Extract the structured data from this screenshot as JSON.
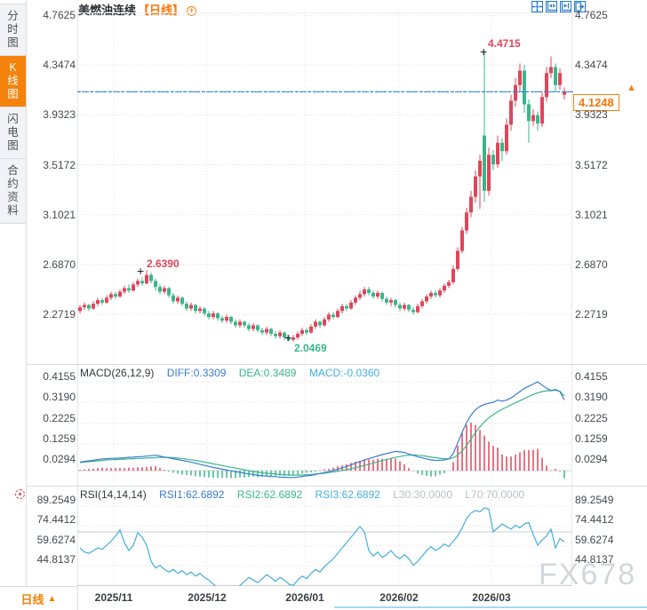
{
  "sidebar": {
    "items": [
      {
        "label": "分时图",
        "active": false
      },
      {
        "label": "K线图",
        "active": true
      },
      {
        "label": "闪电图",
        "active": false
      },
      {
        "label": "合约资料",
        "active": false
      }
    ]
  },
  "header": {
    "title": "美燃油连续",
    "period_tag": "【日线】",
    "add_icon": "+"
  },
  "toolbar": {
    "icons": [
      "crosshair",
      "axis-compress",
      "axis-expand",
      "pan-to-latest"
    ]
  },
  "price_pane": {
    "ticks": [
      "4.7625",
      "4.3474",
      "3.9323",
      "3.5172",
      "3.1021",
      "2.6870",
      "2.2719"
    ],
    "last_price": "4.1248",
    "annotations": {
      "high": "4.4715",
      "swing_high": "2.6390",
      "low": "2.0469"
    }
  },
  "macd_pane": {
    "name": "MACD(26,12,9)",
    "diff_label": "DIFF:0.3309",
    "dea_label": "DEA:0.3489",
    "macd_label": "MACD:-0.0360",
    "ticks": [
      "0.4155",
      "0.3190",
      "0.2225",
      "0.1259",
      "0.0294"
    ]
  },
  "rsi_pane": {
    "name": "RSI(14,14,14)",
    "rsi1_label": "RSI1:62.6892",
    "rsi2_label": "RSI2:62.6892",
    "rsi3_label": "RSI3:62.6892",
    "l30_label": "L30:30.0000",
    "l70_label": "L70:70.0000",
    "ticks": [
      "89.2549",
      "74.4412",
      "59.6274",
      "44.8137"
    ]
  },
  "bottom_bar": {
    "period": "日线",
    "arrow": "▲",
    "x_labels": [
      "2025/11",
      "2025/12",
      "2026/01",
      "2026/02",
      "2026/03"
    ]
  },
  "watermark": "FX678",
  "colors": {
    "up": "#e0455a",
    "down": "#3bb68a",
    "diff": "#3a7bd5",
    "dea": "#3bb68a",
    "rsi": "#45aede",
    "dashed_line": "#2f80d8",
    "accent_orange": "#f5820a",
    "grid": "#d8dadd"
  },
  "chart_data": [
    {
      "type": "candlestick",
      "title": "美燃油连续 日线",
      "x_labels": [
        "2025/11",
        "2025/12",
        "2026/01",
        "2026/02",
        "2026/03"
      ],
      "y_ticks": [
        4.7625,
        4.3474,
        3.9323,
        3.5172,
        3.1021,
        2.687,
        2.2719
      ],
      "high_annotation": 4.4715,
      "low_annotation": 2.0469,
      "swing_high_annotation": 2.639,
      "last_close": 4.1248,
      "ohlc": [
        [
          2.3,
          2.35,
          2.28,
          2.33
        ],
        [
          2.33,
          2.37,
          2.31,
          2.35
        ],
        [
          2.35,
          2.36,
          2.3,
          2.32
        ],
        [
          2.32,
          2.38,
          2.31,
          2.36
        ],
        [
          2.36,
          2.41,
          2.34,
          2.39
        ],
        [
          2.39,
          2.41,
          2.35,
          2.37
        ],
        [
          2.37,
          2.43,
          2.36,
          2.41
        ],
        [
          2.41,
          2.46,
          2.39,
          2.44
        ],
        [
          2.44,
          2.46,
          2.4,
          2.42
        ],
        [
          2.42,
          2.48,
          2.41,
          2.46
        ],
        [
          2.46,
          2.51,
          2.44,
          2.49
        ],
        [
          2.49,
          2.52,
          2.45,
          2.47
        ],
        [
          2.47,
          2.54,
          2.46,
          2.52
        ],
        [
          2.52,
          2.57,
          2.5,
          2.55
        ],
        [
          2.55,
          2.58,
          2.51,
          2.53
        ],
        [
          2.53,
          2.639,
          2.52,
          2.6
        ],
        [
          2.6,
          2.62,
          2.53,
          2.55
        ],
        [
          2.55,
          2.57,
          2.47,
          2.5
        ],
        [
          2.5,
          2.52,
          2.44,
          2.46
        ],
        [
          2.46,
          2.51,
          2.44,
          2.49
        ],
        [
          2.49,
          2.5,
          2.41,
          2.43
        ],
        [
          2.43,
          2.45,
          2.36,
          2.38
        ],
        [
          2.38,
          2.43,
          2.36,
          2.41
        ],
        [
          2.41,
          2.42,
          2.34,
          2.36
        ],
        [
          2.36,
          2.38,
          2.3,
          2.32
        ],
        [
          2.32,
          2.37,
          2.3,
          2.35
        ],
        [
          2.35,
          2.36,
          2.28,
          2.3
        ],
        [
          2.3,
          2.34,
          2.28,
          2.32
        ],
        [
          2.32,
          2.33,
          2.26,
          2.28
        ],
        [
          2.28,
          2.3,
          2.23,
          2.25
        ],
        [
          2.25,
          2.3,
          2.23,
          2.28
        ],
        [
          2.28,
          2.29,
          2.22,
          2.24
        ],
        [
          2.24,
          2.26,
          2.2,
          2.22
        ],
        [
          2.22,
          2.27,
          2.2,
          2.25
        ],
        [
          2.25,
          2.26,
          2.19,
          2.21
        ],
        [
          2.21,
          2.23,
          2.16,
          2.18
        ],
        [
          2.18,
          2.23,
          2.16,
          2.21
        ],
        [
          2.21,
          2.22,
          2.16,
          2.18
        ],
        [
          2.18,
          2.2,
          2.13,
          2.15
        ],
        [
          2.15,
          2.2,
          2.13,
          2.18
        ],
        [
          2.18,
          2.19,
          2.12,
          2.14
        ],
        [
          2.14,
          2.16,
          2.1,
          2.12
        ],
        [
          2.12,
          2.17,
          2.1,
          2.15
        ],
        [
          2.15,
          2.16,
          2.09,
          2.11
        ],
        [
          2.11,
          2.13,
          2.07,
          2.09
        ],
        [
          2.09,
          2.14,
          2.07,
          2.12
        ],
        [
          2.12,
          2.13,
          2.06,
          2.08
        ],
        [
          2.08,
          2.1,
          2.05,
          2.06
        ],
        [
          2.06,
          2.1,
          2.0469,
          2.08
        ],
        [
          2.08,
          2.13,
          2.06,
          2.11
        ],
        [
          2.11,
          2.16,
          2.09,
          2.14
        ],
        [
          2.14,
          2.16,
          2.1,
          2.12
        ],
        [
          2.12,
          2.19,
          2.11,
          2.17
        ],
        [
          2.17,
          2.23,
          2.15,
          2.21
        ],
        [
          2.21,
          2.22,
          2.16,
          2.18
        ],
        [
          2.18,
          2.25,
          2.17,
          2.23
        ],
        [
          2.23,
          2.29,
          2.21,
          2.27
        ],
        [
          2.27,
          2.29,
          2.23,
          2.25
        ],
        [
          2.25,
          2.32,
          2.24,
          2.3
        ],
        [
          2.3,
          2.36,
          2.28,
          2.34
        ],
        [
          2.34,
          2.36,
          2.3,
          2.32
        ],
        [
          2.32,
          2.39,
          2.31,
          2.37
        ],
        [
          2.37,
          2.43,
          2.35,
          2.41
        ],
        [
          2.41,
          2.47,
          2.39,
          2.44
        ],
        [
          2.44,
          2.5,
          2.42,
          2.48
        ],
        [
          2.48,
          2.5,
          2.43,
          2.45
        ],
        [
          2.45,
          2.47,
          2.4,
          2.42
        ],
        [
          2.42,
          2.47,
          2.4,
          2.45
        ],
        [
          2.45,
          2.46,
          2.38,
          2.4
        ],
        [
          2.4,
          2.42,
          2.35,
          2.37
        ],
        [
          2.37,
          2.41,
          2.34,
          2.39
        ],
        [
          2.39,
          2.4,
          2.33,
          2.35
        ],
        [
          2.35,
          2.37,
          2.3,
          2.32
        ],
        [
          2.32,
          2.37,
          2.3,
          2.35
        ],
        [
          2.35,
          2.36,
          2.29,
          2.31
        ],
        [
          2.31,
          2.33,
          2.27,
          2.29
        ],
        [
          2.29,
          2.36,
          2.28,
          2.34
        ],
        [
          2.34,
          2.4,
          2.32,
          2.38
        ],
        [
          2.38,
          2.44,
          2.36,
          2.42
        ],
        [
          2.42,
          2.47,
          2.4,
          2.45
        ],
        [
          2.45,
          2.47,
          2.41,
          2.43
        ],
        [
          2.43,
          2.49,
          2.41,
          2.47
        ],
        [
          2.47,
          2.53,
          2.45,
          2.51
        ],
        [
          2.51,
          2.56,
          2.49,
          2.54
        ],
        [
          2.54,
          2.68,
          2.52,
          2.65
        ],
        [
          2.65,
          2.83,
          2.63,
          2.8
        ],
        [
          2.8,
          3.0,
          2.78,
          2.97
        ],
        [
          2.97,
          3.16,
          2.94,
          3.12
        ],
        [
          3.12,
          3.3,
          3.08,
          3.25
        ],
        [
          3.25,
          3.47,
          3.2,
          3.42
        ],
        [
          3.42,
          3.6,
          3.15,
          3.55
        ],
        [
          3.76,
          4.4715,
          3.21,
          3.3
        ],
        [
          3.3,
          3.66,
          3.26,
          3.6
        ],
        [
          3.6,
          3.64,
          3.47,
          3.52
        ],
        [
          3.52,
          3.76,
          3.49,
          3.7
        ],
        [
          3.7,
          3.74,
          3.55,
          3.63
        ],
        [
          3.63,
          3.9,
          3.6,
          3.85
        ],
        [
          3.85,
          4.1,
          3.8,
          4.05
        ],
        [
          4.05,
          4.24,
          4.0,
          4.18
        ],
        [
          4.18,
          4.36,
          4.12,
          4.3
        ],
        [
          4.3,
          4.35,
          3.95,
          4.02
        ],
        [
          4.02,
          4.06,
          3.7,
          3.88
        ],
        [
          3.88,
          3.98,
          3.84,
          3.93
        ],
        [
          3.93,
          3.96,
          3.8,
          3.86
        ],
        [
          3.86,
          4.12,
          3.83,
          4.08
        ],
        [
          4.08,
          4.33,
          4.04,
          4.28
        ],
        [
          4.28,
          4.42,
          4.24,
          4.33
        ],
        [
          4.33,
          4.36,
          4.12,
          4.18
        ],
        [
          4.18,
          4.32,
          4.14,
          4.28
        ],
        [
          4.1,
          4.16,
          4.06,
          4.1248
        ]
      ]
    },
    {
      "type": "macd",
      "params": [
        26,
        12,
        9
      ],
      "y_ticks": [
        0.4155,
        0.319,
        0.2225,
        0.1259,
        0.0294
      ],
      "last": {
        "diff": 0.3309,
        "dea": 0.3489,
        "macd": -0.036
      },
      "hist_formula": "2*(diff-dea)",
      "diff": [
        0.04,
        0.043,
        0.046,
        0.049,
        0.052,
        0.055,
        0.056,
        0.057,
        0.058,
        0.059,
        0.06,
        0.062,
        0.063,
        0.065,
        0.066,
        0.068,
        0.07,
        0.072,
        0.068,
        0.064,
        0.06,
        0.056,
        0.052,
        0.048,
        0.044,
        0.04,
        0.035,
        0.03,
        0.025,
        0.02,
        0.015,
        0.011,
        0.007,
        0.003,
        -0.001,
        -0.005,
        -0.008,
        -0.012,
        -0.015,
        -0.018,
        -0.022,
        -0.024,
        -0.025,
        -0.027,
        -0.028,
        -0.03,
        -0.031,
        -0.032,
        -0.032,
        -0.03,
        -0.027,
        -0.024,
        -0.022,
        -0.018,
        -0.013,
        -0.009,
        -0.005,
        0.001,
        0.007,
        0.013,
        0.02,
        0.027,
        0.035,
        0.042,
        0.05,
        0.056,
        0.062,
        0.069,
        0.075,
        0.08,
        0.085,
        0.09,
        0.088,
        0.085,
        0.078,
        0.072,
        0.065,
        0.06,
        0.055,
        0.05,
        0.048,
        0.049,
        0.05,
        0.055,
        0.08,
        0.13,
        0.18,
        0.225,
        0.26,
        0.285,
        0.3,
        0.31,
        0.315,
        0.32,
        0.33,
        0.325,
        0.33,
        0.34,
        0.355,
        0.37,
        0.385,
        0.395,
        0.405,
        0.415,
        0.4,
        0.385,
        0.375,
        0.38,
        0.37,
        0.331
      ],
      "dea": [
        0.038,
        0.04,
        0.042,
        0.044,
        0.046,
        0.048,
        0.05,
        0.051,
        0.052,
        0.053,
        0.054,
        0.055,
        0.056,
        0.057,
        0.058,
        0.059,
        0.06,
        0.061,
        0.062,
        0.062,
        0.062,
        0.061,
        0.059,
        0.057,
        0.054,
        0.051,
        0.048,
        0.044,
        0.04,
        0.036,
        0.032,
        0.028,
        0.024,
        0.02,
        0.016,
        0.012,
        0.008,
        0.004,
        0.0,
        -0.004,
        -0.007,
        -0.01,
        -0.012,
        -0.014,
        -0.016,
        -0.018,
        -0.019,
        -0.02,
        -0.021,
        -0.021,
        -0.02,
        -0.019,
        -0.018,
        -0.016,
        -0.014,
        -0.012,
        -0.009,
        -0.006,
        -0.003,
        0.001,
        0.005,
        0.009,
        0.014,
        0.019,
        0.025,
        0.03,
        0.036,
        0.041,
        0.047,
        0.052,
        0.057,
        0.062,
        0.066,
        0.07,
        0.072,
        0.073,
        0.072,
        0.07,
        0.067,
        0.064,
        0.061,
        0.058,
        0.056,
        0.055,
        0.06,
        0.072,
        0.092,
        0.118,
        0.148,
        0.178,
        0.205,
        0.228,
        0.247,
        0.262,
        0.276,
        0.287,
        0.297,
        0.307,
        0.317,
        0.327,
        0.337,
        0.347,
        0.356,
        0.364,
        0.37,
        0.373,
        0.374,
        0.376,
        0.372,
        0.349
      ]
    },
    {
      "type": "rsi",
      "params": [
        14,
        14,
        14
      ],
      "last": 62.6892,
      "levels": {
        "l30": 30.0,
        "l70": 70.0
      },
      "y_ticks": [
        89.2549,
        74.4412,
        59.6274,
        44.8137
      ],
      "values": [
        58,
        55,
        54,
        56,
        58,
        57,
        60,
        63,
        67,
        71.5,
        62,
        56,
        60,
        69.5,
        66,
        60,
        48,
        43,
        45,
        42,
        40,
        42,
        39,
        41,
        38,
        40,
        37,
        39,
        36,
        34,
        31,
        28,
        26,
        28,
        25,
        27,
        30,
        33,
        36,
        34,
        32,
        35,
        38,
        36,
        33,
        36,
        34,
        31,
        30,
        34,
        37,
        35,
        39,
        42,
        40,
        44,
        47,
        50,
        54,
        58,
        62,
        66,
        70,
        74,
        70,
        56,
        52,
        55,
        51,
        53,
        56,
        52,
        50,
        53,
        50,
        45,
        48,
        52,
        56,
        59,
        56,
        58,
        61,
        59,
        63,
        67,
        73,
        80,
        84,
        86,
        85,
        88,
        87,
        70,
        73,
        76,
        74,
        72,
        75,
        73,
        76,
        77,
        68,
        60,
        64,
        67,
        72,
        58,
        65,
        62.69
      ]
    }
  ]
}
